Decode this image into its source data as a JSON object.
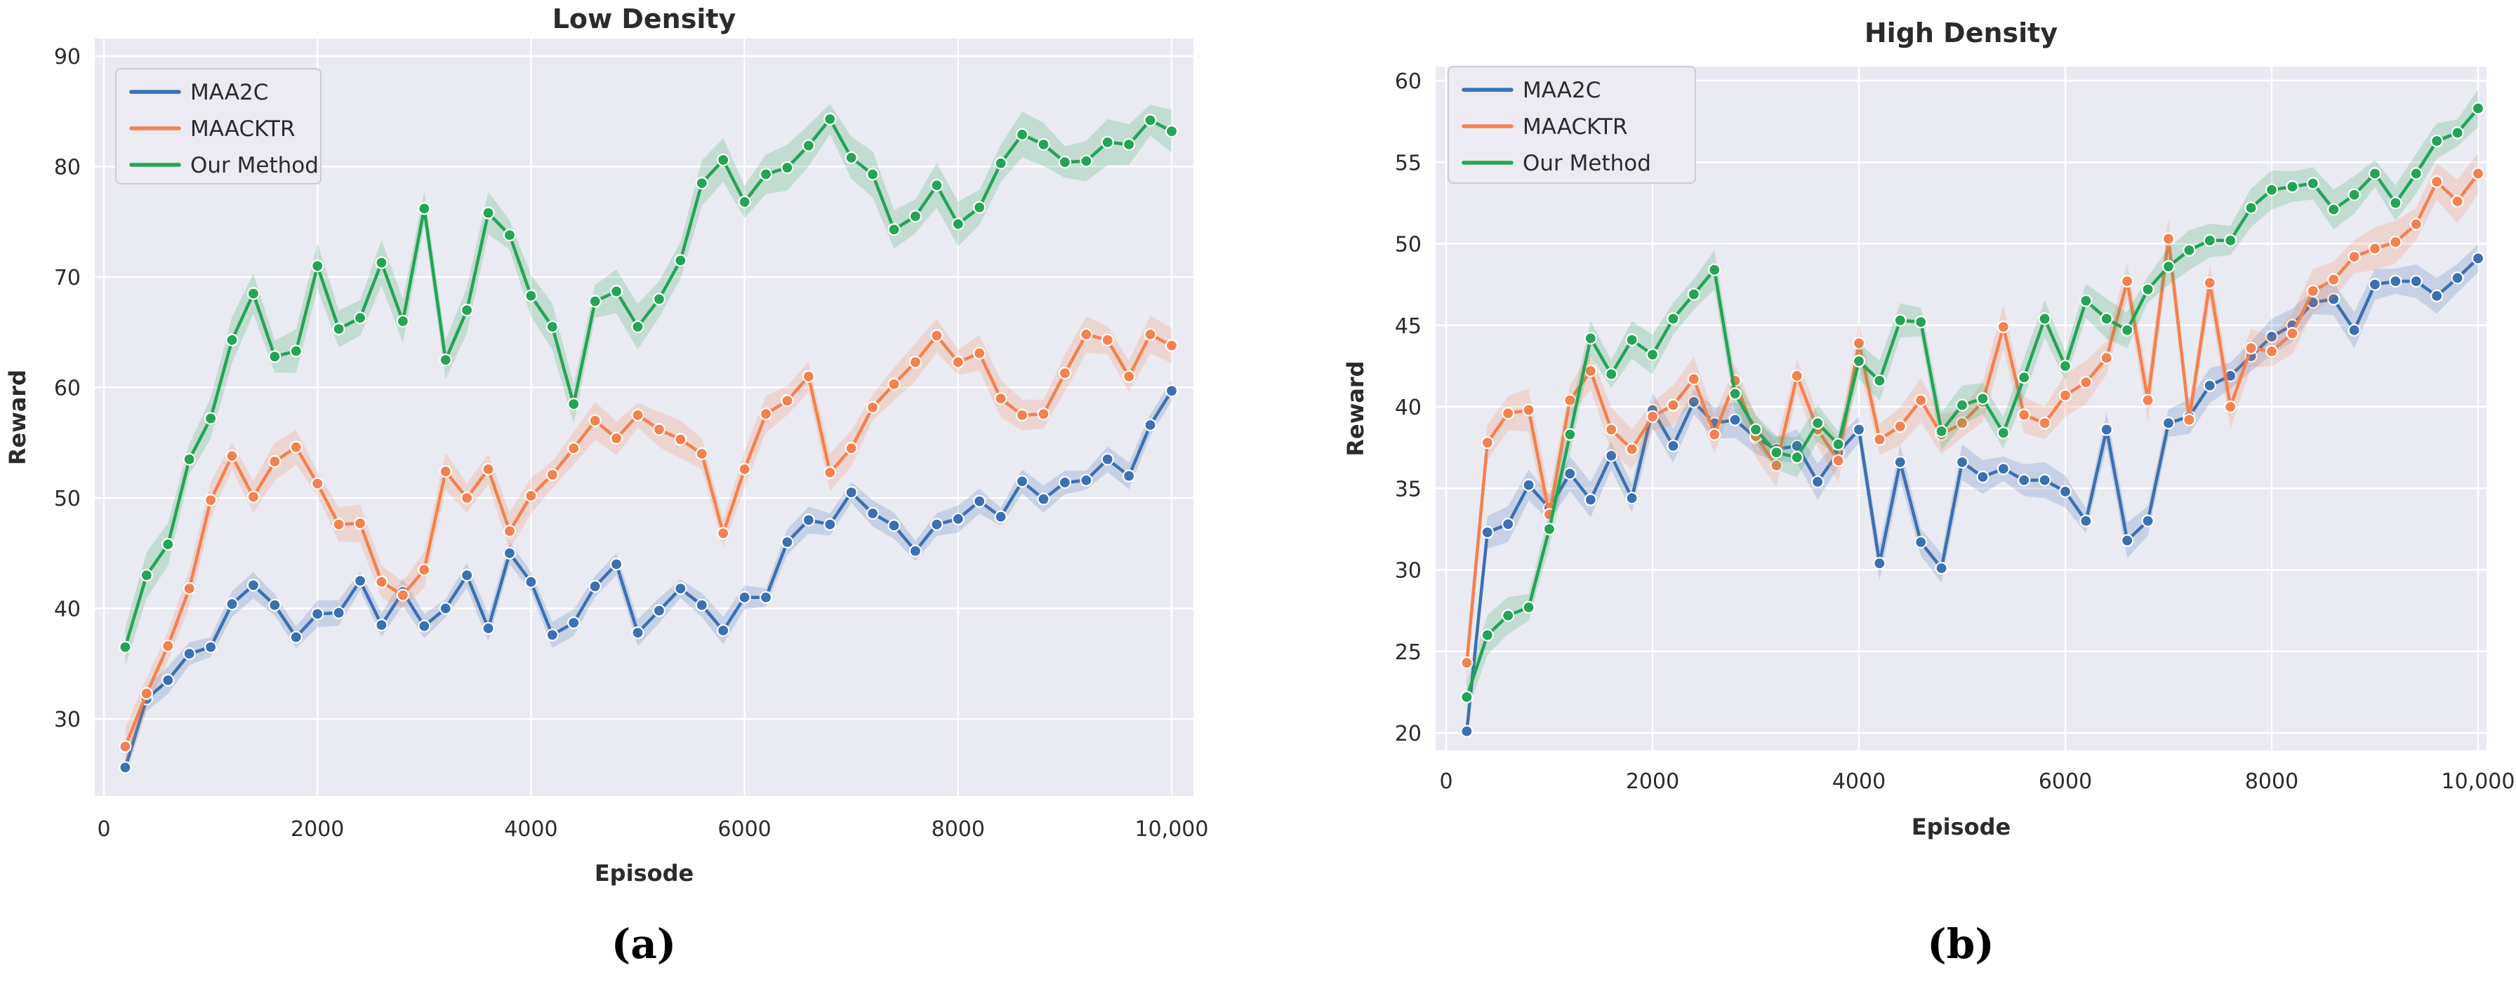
{
  "legend": {
    "entries": [
      "MAA2C",
      "MAACKTR",
      "Our Method"
    ]
  },
  "colors": {
    "maa2c": "#3b70b2",
    "maacktr": "#f4814e",
    "our_method": "#23a456",
    "plot_background": "#eaeaf2",
    "gridline": "#ffffff",
    "tick_text": "#2b2b2b",
    "legend_background": "#ecebf3",
    "legend_border": "#cbcbd4"
  },
  "chart_data": [
    {
      "type": "line",
      "title": "Low Density",
      "caption": "(a)",
      "xlabel": "Episode",
      "ylabel": "Reward",
      "x_tick_labels": [
        "0",
        "2000",
        "4000",
        "6000",
        "8000",
        "10,000"
      ],
      "x_tick_values": [
        0,
        2000,
        4000,
        6000,
        8000,
        10000
      ],
      "y_tick_values": [
        30,
        40,
        50,
        60,
        70,
        80,
        90
      ],
      "ylim": [
        23.0,
        91.6
      ],
      "xlim": [
        0,
        10000
      ],
      "grid": true,
      "legend_position": "upper-left",
      "episodes": [
        200,
        400,
        600,
        800,
        1000,
        1200,
        1400,
        1600,
        1800,
        2000,
        2200,
        2400,
        2600,
        2800,
        3000,
        3200,
        3400,
        3600,
        3800,
        4000,
        4200,
        4400,
        4600,
        4800,
        5000,
        5200,
        5400,
        5600,
        5800,
        6000,
        6200,
        6400,
        6600,
        6800,
        7000,
        7200,
        7400,
        7600,
        7800,
        8000,
        8200,
        8400,
        8600,
        8800,
        9000,
        9200,
        9400,
        9600,
        9800,
        10000
      ],
      "series": [
        {
          "name": "MAA2C",
          "color": "#3b70b2",
          "band": 1.0,
          "values": [
            25.6,
            31.8,
            33.5,
            35.9,
            36.5,
            40.4,
            42.1,
            40.3,
            37.4,
            39.5,
            39.6,
            42.5,
            38.5,
            41.5,
            38.4,
            40.0,
            43.0,
            38.2,
            45.0,
            42.4,
            37.6,
            38.7,
            42.0,
            44.0,
            37.8,
            39.8,
            41.8,
            40.3,
            38.0,
            41.0,
            41.0,
            46.0,
            48.0,
            47.6,
            50.5,
            48.6,
            47.5,
            45.2,
            47.6,
            48.1,
            49.7,
            48.3,
            51.5,
            49.9,
            51.4,
            51.6,
            53.5,
            52.0,
            56.6,
            59.7
          ]
        },
        {
          "name": "MAACKTR",
          "color": "#f4814e",
          "band": 1.4,
          "values": [
            27.5,
            32.3,
            36.6,
            41.8,
            49.8,
            53.8,
            50.1,
            53.3,
            54.6,
            51.3,
            47.6,
            47.7,
            42.4,
            41.2,
            43.5,
            52.4,
            50.0,
            52.6,
            47.0,
            50.2,
            52.1,
            54.5,
            57.0,
            55.4,
            57.5,
            56.2,
            55.3,
            54.0,
            46.8,
            52.6,
            57.6,
            58.8,
            61.0,
            52.3,
            54.5,
            58.2,
            60.3,
            62.3,
            64.7,
            62.3,
            63.1,
            59.0,
            57.5,
            57.6,
            61.3,
            64.8,
            64.3,
            61.0,
            64.8,
            63.8
          ]
        },
        {
          "name": "Our Method",
          "color": "#23a456",
          "band": 1.7,
          "values": [
            36.5,
            43.0,
            45.8,
            53.5,
            57.2,
            64.3,
            68.5,
            62.8,
            63.3,
            71.0,
            65.3,
            66.3,
            71.3,
            66.0,
            76.2,
            62.5,
            67.0,
            75.8,
            73.8,
            68.3,
            65.5,
            58.5,
            67.8,
            68.7,
            65.5,
            68.0,
            71.5,
            78.5,
            80.6,
            76.8,
            79.3,
            79.9,
            81.9,
            84.3,
            80.8,
            79.3,
            74.3,
            75.5,
            78.3,
            74.8,
            76.3,
            80.3,
            82.9,
            82.0,
            80.4,
            80.5,
            82.2,
            82.0,
            84.2,
            83.2
          ]
        }
      ]
    },
    {
      "type": "line",
      "title": "High Density",
      "caption": "(b)",
      "xlabel": "Episode",
      "ylabel": "Reward",
      "x_tick_labels": [
        "0",
        "2000",
        "4000",
        "6000",
        "8000",
        "10,000"
      ],
      "x_tick_values": [
        0,
        2000,
        4000,
        6000,
        8000,
        10000
      ],
      "y_tick_values": [
        20,
        25,
        30,
        35,
        40,
        45,
        50,
        55,
        60
      ],
      "ylim": [
        18.9,
        60.9
      ],
      "xlim": [
        0,
        10000
      ],
      "grid": true,
      "legend_position": "upper-left",
      "episodes": [
        200,
        400,
        600,
        800,
        1000,
        1200,
        1400,
        1600,
        1800,
        2000,
        2200,
        2400,
        2600,
        2800,
        3000,
        3200,
        3400,
        3600,
        3800,
        4000,
        4200,
        4400,
        4600,
        4800,
        5000,
        5200,
        5400,
        5600,
        5800,
        6000,
        6200,
        6400,
        6600,
        6800,
        7000,
        7200,
        7400,
        7600,
        7800,
        8000,
        8200,
        8400,
        8600,
        8800,
        9000,
        9200,
        9400,
        9600,
        9800,
        10000
      ],
      "series": [
        {
          "name": "MAA2C",
          "color": "#3b70b2",
          "band": 0.9,
          "values": [
            20.1,
            32.3,
            32.8,
            35.2,
            33.8,
            35.9,
            34.3,
            37.0,
            34.4,
            39.8,
            37.6,
            40.3,
            39.0,
            39.2,
            38.1,
            37.4,
            37.6,
            35.4,
            37.2,
            38.6,
            30.4,
            36.6,
            31.7,
            30.1,
            36.6,
            35.7,
            36.2,
            35.5,
            35.5,
            34.8,
            33.0,
            38.6,
            31.8,
            33.0,
            39.0,
            39.4,
            41.3,
            41.9,
            43.1,
            44.3,
            45.0,
            46.4,
            46.6,
            44.7,
            47.5,
            47.7,
            47.7,
            46.8,
            47.9,
            49.1
          ]
        },
        {
          "name": "MAACKTR",
          "color": "#f4814e",
          "band": 1.1,
          "values": [
            24.3,
            37.8,
            39.6,
            39.8,
            33.4,
            40.4,
            42.2,
            38.6,
            37.4,
            39.4,
            40.1,
            41.7,
            38.3,
            41.6,
            38.2,
            36.4,
            41.9,
            38.6,
            36.7,
            43.9,
            38.0,
            38.8,
            40.4,
            38.3,
            39.0,
            40.3,
            44.9,
            39.5,
            39.0,
            40.7,
            41.5,
            43.0,
            47.7,
            40.4,
            50.3,
            39.2,
            47.6,
            40.0,
            43.6,
            43.4,
            44.5,
            47.1,
            47.8,
            49.2,
            49.7,
            50.1,
            51.2,
            53.8,
            52.6,
            54.3
          ]
        },
        {
          "name": "Our Method",
          "color": "#23a456",
          "band": 1.0,
          "values": [
            22.2,
            26.0,
            27.2,
            27.7,
            32.5,
            38.3,
            44.2,
            42.0,
            44.1,
            43.2,
            45.4,
            46.9,
            48.4,
            40.8,
            38.6,
            37.2,
            36.9,
            39.0,
            37.7,
            42.8,
            41.6,
            45.3,
            45.2,
            38.5,
            40.1,
            40.5,
            38.4,
            41.8,
            45.4,
            42.5,
            46.5,
            45.4,
            44.7,
            47.2,
            48.6,
            49.6,
            50.2,
            50.2,
            52.2,
            53.3,
            53.5,
            53.7,
            52.1,
            53.0,
            54.3,
            52.5,
            54.3,
            56.3,
            56.8,
            58.3
          ]
        }
      ]
    }
  ]
}
